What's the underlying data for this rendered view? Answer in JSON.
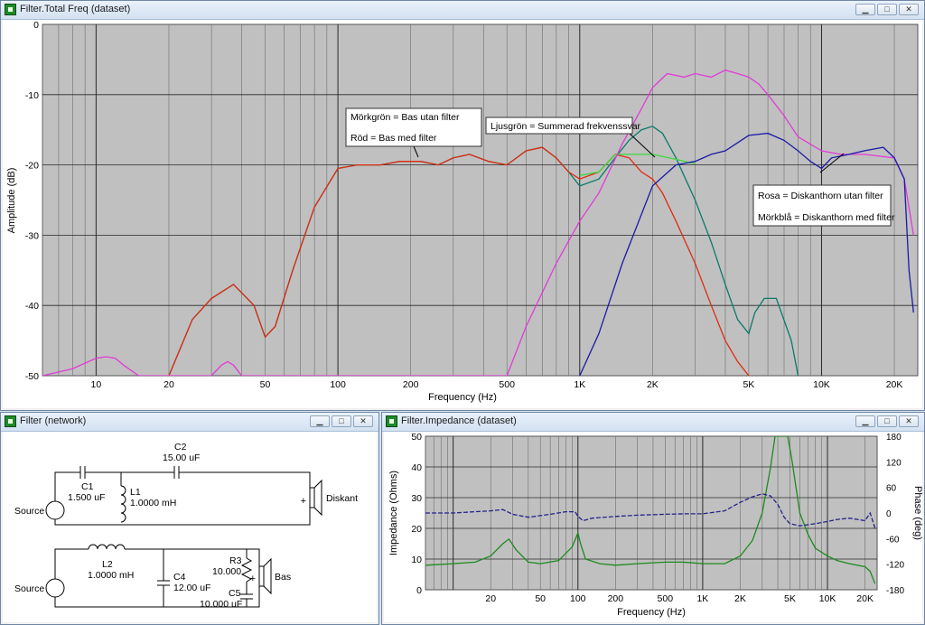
{
  "windows": {
    "total": {
      "title": "Filter.Total Freq (dataset)"
    },
    "network": {
      "title": "Filter (network)"
    },
    "impedance": {
      "title": "Filter.Impedance (dataset)"
    }
  },
  "window_buttons": {
    "minimize": "▁",
    "maximize": "□",
    "close": "✕"
  },
  "total_chart": {
    "ylabel": "Amplitude (dB)",
    "xlabel": "Frequency (Hz)",
    "y_ticks": [
      "0",
      "-10",
      "-20",
      "-30",
      "-40",
      "-50"
    ],
    "x_ticks": [
      "10",
      "20",
      "50",
      "100",
      "200",
      "500",
      "1K",
      "2K",
      "5K",
      "10K",
      "20K"
    ],
    "annotations": {
      "bass_no_filter": "Mörkgrön = Bas utan filter",
      "bass_filter": "Röd = Bas med filter",
      "summed": "Ljusgrön = Summerad frekvenssvar",
      "horn_no_filter": "Rosa = Diskanthorn utan filter",
      "horn_filter": "Mörkblå = Diskanthorn med filter"
    }
  },
  "impedance_chart": {
    "ylabel": "Impedance (Ohms)",
    "y2label": "Phase (deg)",
    "xlabel": "Frequency (Hz)",
    "y_ticks": [
      "50",
      "40",
      "30",
      "20",
      "10",
      "0"
    ],
    "y2_ticks": [
      "180",
      "120",
      "60",
      "0",
      "-60",
      "-120",
      "-180"
    ],
    "x_ticks": [
      "20",
      "50",
      "100",
      "200",
      "500",
      "1K",
      "2K",
      "5K",
      "10K",
      "20K"
    ]
  },
  "network": {
    "c2": {
      "name": "C2",
      "value": "15.00 uF"
    },
    "c1": {
      "name": "C1",
      "value": "1.500 uF"
    },
    "l1": {
      "name": "L1",
      "value": "1.0000 mH"
    },
    "l2": {
      "name": "L2",
      "value": "1.0000 mH"
    },
    "c4": {
      "name": "C4",
      "value": "12.00 uF"
    },
    "r3": {
      "name": "R3",
      "value": "10.000"
    },
    "c5": {
      "name": "C5",
      "value": "10.000 uF"
    },
    "source_top": "Source",
    "source_bottom": "Source",
    "tweeter": "Diskant",
    "woofer": "Bas",
    "plus_top": "+",
    "plus_bottom": "+"
  },
  "chart_data": [
    {
      "type": "line",
      "title": "",
      "xlabel": "Frequency (Hz)",
      "ylabel": "Amplitude (dB)",
      "x_scale": "log",
      "xlim": [
        6,
        25000
      ],
      "ylim": [
        -50,
        0
      ],
      "grid": true,
      "series": [
        {
          "name": "Mörkgrön = Bas utan filter",
          "color": "#0a7a6a",
          "x": [
            20,
            25,
            30,
            37,
            45,
            50,
            55,
            65,
            80,
            100,
            120,
            150,
            180,
            220,
            260,
            300,
            350,
            420,
            500,
            600,
            700,
            800,
            900,
            1000,
            1200,
            1400,
            1600,
            1800,
            2000,
            2200,
            2500,
            3000,
            3500,
            4000,
            4500,
            5000,
            5300,
            5800,
            6500,
            7500,
            8000
          ],
          "y": [
            -50,
            -42,
            -39,
            -37,
            -40,
            -44.5,
            -43,
            -35,
            -26,
            -20.5,
            -20,
            -20,
            -19.5,
            -19.5,
            -20,
            -19,
            -18.5,
            -19.5,
            -20,
            -18,
            -17.5,
            -19,
            -21,
            -23,
            -22,
            -19,
            -16.5,
            -15,
            -14.5,
            -15.5,
            -19,
            -25,
            -31,
            -37,
            -42,
            -44,
            -41,
            -39,
            -39,
            -45,
            -50
          ]
        },
        {
          "name": "Röd = Bas med filter",
          "color": "#e02a10",
          "x": [
            20,
            25,
            30,
            37,
            45,
            50,
            55,
            65,
            80,
            100,
            120,
            150,
            180,
            220,
            260,
            300,
            350,
            420,
            500,
            600,
            700,
            800,
            900,
            1000,
            1200,
            1400,
            1600,
            1800,
            2000,
            2200,
            2500,
            3000,
            3500,
            4000,
            4500,
            5000
          ],
          "y": [
            -50,
            -42,
            -39,
            -37,
            -40,
            -44.5,
            -43,
            -35,
            -26,
            -20.5,
            -20,
            -20,
            -19.5,
            -19.5,
            -20,
            -19,
            -18.5,
            -19.5,
            -20,
            -18,
            -17.5,
            -19,
            -21,
            -22,
            -21,
            -18.5,
            -19,
            -21,
            -22,
            -24,
            -28,
            -34,
            -40,
            -45,
            -48,
            -50
          ]
        },
        {
          "name": "Ljusgrön = Summerad frekvenssvar",
          "color": "#3cd83c",
          "x": [
            1000,
            1200,
            1400,
            1600,
            1800,
            2000,
            2200,
            2500,
            2800,
            3000
          ],
          "y": [
            -21.5,
            -21,
            -18.5,
            -18.5,
            -18.5,
            -18.5,
            -18.8,
            -19.2,
            -19.6,
            -19.8
          ]
        },
        {
          "name": "Rosa = Diskanthorn utan filter",
          "color": "#e23ad8",
          "x": [
            6,
            8,
            10,
            11,
            12,
            13,
            15,
            17,
            20,
            30,
            33,
            35,
            37,
            40,
            45,
            50,
            60,
            80,
            100,
            200,
            500,
            600,
            800,
            1000,
            1200,
            1500,
            1800,
            2000,
            2300,
            2700,
            3000,
            3500,
            4000,
            4500,
            5000,
            5500,
            6000,
            7000,
            8000,
            10000,
            12000,
            15000,
            20000,
            22000,
            24000
          ],
          "y": [
            -50,
            -49,
            -47.5,
            -47.3,
            -47.5,
            -48.5,
            -50,
            -50,
            -50,
            -50,
            -48.5,
            -48,
            -48.5,
            -50,
            -50,
            -50,
            -50,
            -50,
            -50,
            -50,
            -50,
            -43,
            -34,
            -28,
            -24,
            -17,
            -12,
            -9,
            -7,
            -7.5,
            -7,
            -7.5,
            -6.5,
            -7,
            -7.5,
            -8.5,
            -10,
            -13,
            -16,
            -18,
            -18.5,
            -18.5,
            -19,
            -22,
            -30
          ]
        },
        {
          "name": "Mörkblå = Diskanthorn med filter",
          "color": "#1a1aa8",
          "x": [
            1000,
            1200,
            1500,
            2000,
            2500,
            3000,
            3500,
            4000,
            5000,
            6000,
            7000,
            8000,
            9000,
            10000,
            11000,
            13000,
            15000,
            18000,
            20000,
            22000,
            23000,
            24000
          ],
          "y": [
            -50,
            -44,
            -34,
            -23,
            -20,
            -19.5,
            -18.5,
            -18,
            -15.8,
            -15.5,
            -16.5,
            -18,
            -19.5,
            -20.5,
            -19,
            -18.5,
            -18,
            -17.5,
            -19,
            -22,
            -35,
            -41
          ]
        }
      ]
    },
    {
      "type": "line",
      "title": "",
      "xlabel": "Frequency (Hz)",
      "ylabel": "Impedance (Ohms)",
      "y2label": "Phase (deg)",
      "x_scale": "log",
      "xlim": [
        6,
        25000
      ],
      "ylim": [
        0,
        50
      ],
      "y2lim": [
        -180,
        180
      ],
      "grid": true,
      "series": [
        {
          "name": "Impedance",
          "color": "#1d8a1d",
          "axis": "left",
          "x": [
            6,
            10,
            15,
            20,
            25,
            28,
            32,
            40,
            50,
            70,
            90,
            100,
            105,
            115,
            150,
            200,
            300,
            500,
            700,
            1000,
            1500,
            2000,
            2500,
            3000,
            3500,
            3800,
            4000,
            4200,
            4500,
            4800,
            5200,
            6000,
            7000,
            8000,
            10000,
            12000,
            15000,
            20000,
            22000,
            24000
          ],
          "y": [
            8,
            8.5,
            9,
            11,
            15,
            16.5,
            13,
            9,
            8.5,
            9.5,
            14,
            18.5,
            15,
            10,
            8.5,
            8,
            8.5,
            9,
            9,
            8.5,
            8.5,
            11,
            16,
            25,
            40,
            50,
            50,
            50,
            50,
            50,
            42,
            25,
            18,
            13.5,
            11,
            9.5,
            8.5,
            7.5,
            6,
            2
          ]
        },
        {
          "name": "Phase",
          "color": "#24248a",
          "axis": "right",
          "x": [
            6,
            10,
            20,
            25,
            30,
            40,
            60,
            80,
            95,
            100,
            110,
            130,
            200,
            300,
            500,
            700,
            1000,
            1500,
            2000,
            2500,
            3000,
            3500,
            4000,
            4500,
            5000,
            6000,
            8000,
            10000,
            12000,
            15000,
            20000,
            22000,
            24000
          ],
          "y": [
            0,
            0,
            5,
            8,
            -3,
            -10,
            -3,
            3,
            3,
            -8,
            -18,
            -12,
            -8,
            -5,
            -3,
            -2,
            -2,
            5,
            25,
            38,
            45,
            40,
            20,
            -10,
            -25,
            -30,
            -25,
            -20,
            -15,
            -12,
            -18,
            0,
            -35
          ]
        }
      ]
    }
  ]
}
